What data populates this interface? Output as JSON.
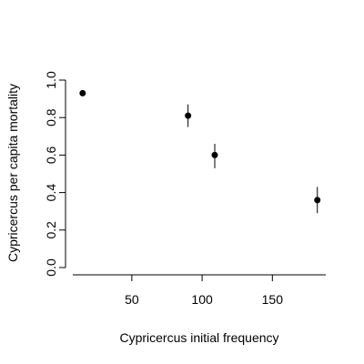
{
  "chart_data": {
    "type": "scatter",
    "xlabel": "Cypricercus initial frequency",
    "ylabel": "Cypricercus per capita mortality",
    "xlim": [
      8,
      188
    ],
    "ylim": [
      0,
      1
    ],
    "x_ticks": [
      50,
      100,
      150
    ],
    "x_tick_labels": [
      "50",
      "100",
      "150"
    ],
    "y_ticks": [
      0,
      0.2,
      0.4,
      0.6,
      0.8,
      1
    ],
    "y_tick_labels": [
      "0.0",
      "0.2",
      "0.4",
      "0.6",
      "0.8",
      "1.0"
    ],
    "grid": false,
    "points": [
      {
        "x": 15,
        "y": 0.93,
        "ylow": 0.93,
        "yhigh": 0.93
      },
      {
        "x": 90,
        "y": 0.81,
        "ylow": 0.75,
        "yhigh": 0.87
      },
      {
        "x": 109,
        "y": 0.6,
        "ylow": 0.53,
        "yhigh": 0.66
      },
      {
        "x": 182,
        "y": 0.36,
        "ylow": 0.29,
        "yhigh": 0.43
      }
    ]
  }
}
